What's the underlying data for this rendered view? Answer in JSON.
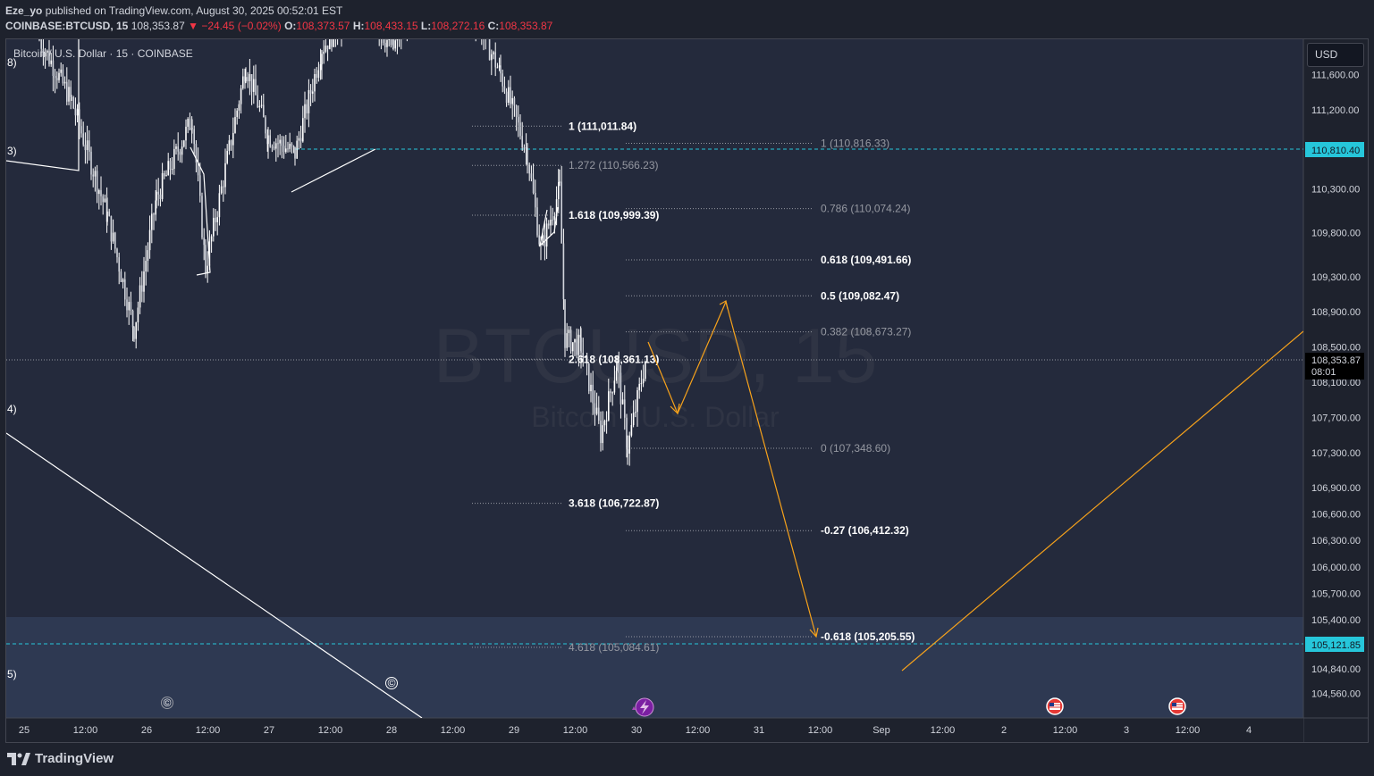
{
  "header": {
    "author": "Eze_yo",
    "published_text": "published on TradingView.com, August 30, 2025 00:52:01 EST",
    "symbol_line": "COINBASE:BTCUSD, 15",
    "last": "108,353.87",
    "change": "▼ −24.45 (−0.02%)",
    "o_label": "O:",
    "o_value": "108,373.57",
    "h_label": "H:",
    "h_value": "108,433.15",
    "l_label": "L:",
    "l_value": "108,272.16",
    "c_label": "C:",
    "c_value": "108,353.87"
  },
  "chart_title": "Bitcoin / U.S. Dollar · 15 · COINBASE",
  "currency_button": "USD",
  "watermark": {
    "symbol": "BTCUSD, 15",
    "name": "Bitcoin / U.S. Dollar"
  },
  "footer": {
    "brand": "TradingView"
  },
  "colors": {
    "background": "#1e222d",
    "pane": "#242a3c",
    "zone": "#2e3952",
    "price_tag": "#26c6da",
    "last_price_tag": "#000000",
    "arrow": "#f7a21b",
    "fib_bright": "#ffffff",
    "fib_dim": "#9598a1"
  },
  "chart_data": {
    "type": "candlestick",
    "title": "Bitcoin / U.S. Dollar · 15 · COINBASE",
    "y_axis": {
      "ticks": [
        111600,
        111200,
        110300,
        109800,
        109300,
        108900,
        108500,
        108100,
        107700,
        107300,
        106900,
        106600,
        106300,
        106000,
        105700,
        105400,
        104840,
        104560
      ],
      "tick_labels": [
        "111,600.00",
        "111,200.00",
        "110,300.00",
        "109,800.00",
        "109,300.00",
        "108,900.00",
        "108,500.00",
        "108,100.00",
        "107,700.00",
        "107,300.00",
        "106,900.00",
        "106,600.00",
        "106,300.00",
        "106,000.00",
        "105,700.00",
        "105,400.00",
        "104,840.00",
        "104,560.00"
      ]
    },
    "x_axis": {
      "tick_labels": [
        "25",
        "12:00",
        "26",
        "12:00",
        "27",
        "12:00",
        "28",
        "12:00",
        "29",
        "12:00",
        "30",
        "12:00",
        "31",
        "12:00",
        "Sep",
        "12:00",
        "2",
        "12:00",
        "3",
        "12:00",
        "4"
      ]
    },
    "horizontal_levels": [
      {
        "value": 110810.4,
        "label": "110,810.40"
      },
      {
        "value": 105121.85,
        "label": "105,121.85"
      }
    ],
    "last_price": {
      "value": 108353.87,
      "label": "108,353.87",
      "countdown": "08:01"
    },
    "fib_extension_left": [
      {
        "level": "1",
        "price": 111011.84,
        "text": "1 (111,011.84)",
        "bright": true
      },
      {
        "level": "1.272",
        "price": 110566.23,
        "text": "1.272 (110,566.23)",
        "bright": false
      },
      {
        "level": "1.618",
        "price": 109999.39,
        "text": "1.618 (109,999.39)",
        "bright": true
      },
      {
        "level": "2.618",
        "price": 108361.13,
        "text": "2.618 (108,361.13)",
        "bright": true
      },
      {
        "level": "3.618",
        "price": 106722.87,
        "text": "3.618 (106,722.87)",
        "bright": true
      },
      {
        "level": "4.618",
        "price": 105084.61,
        "text": "4.618 (105,084.61)",
        "bright": false
      }
    ],
    "fib_retracement_right": [
      {
        "level": "1",
        "price": 110816.33,
        "text": "1 (110,816.33)",
        "bright": false
      },
      {
        "level": "0.786",
        "price": 110074.24,
        "text": "0.786 (110,074.24)",
        "bright": false
      },
      {
        "level": "0.618",
        "price": 109491.66,
        "text": "0.618 (109,491.66)",
        "bright": true
      },
      {
        "level": "0.5",
        "price": 109082.47,
        "text": "0.5 (109,082.47)",
        "bright": true
      },
      {
        "level": "0.382",
        "price": 108673.27,
        "text": "0.382 (108,673.27)",
        "bright": false
      },
      {
        "level": "0",
        "price": 107348.6,
        "text": "0 (107,348.60)",
        "bright": false
      },
      {
        "level": "-0.27",
        "price": 106412.32,
        "text": "-0.27 (106,412.32)",
        "bright": true
      },
      {
        "level": "-0.618",
        "price": 105205.55,
        "text": "-0.618 (105,205.55)",
        "bright": true
      }
    ],
    "wave_labels": [
      "8)",
      "3)",
      "4)",
      "5)",
      "©",
      "©"
    ],
    "projection_path_prices": [
      108500,
      107550,
      109070,
      105220
    ],
    "grid": false
  }
}
